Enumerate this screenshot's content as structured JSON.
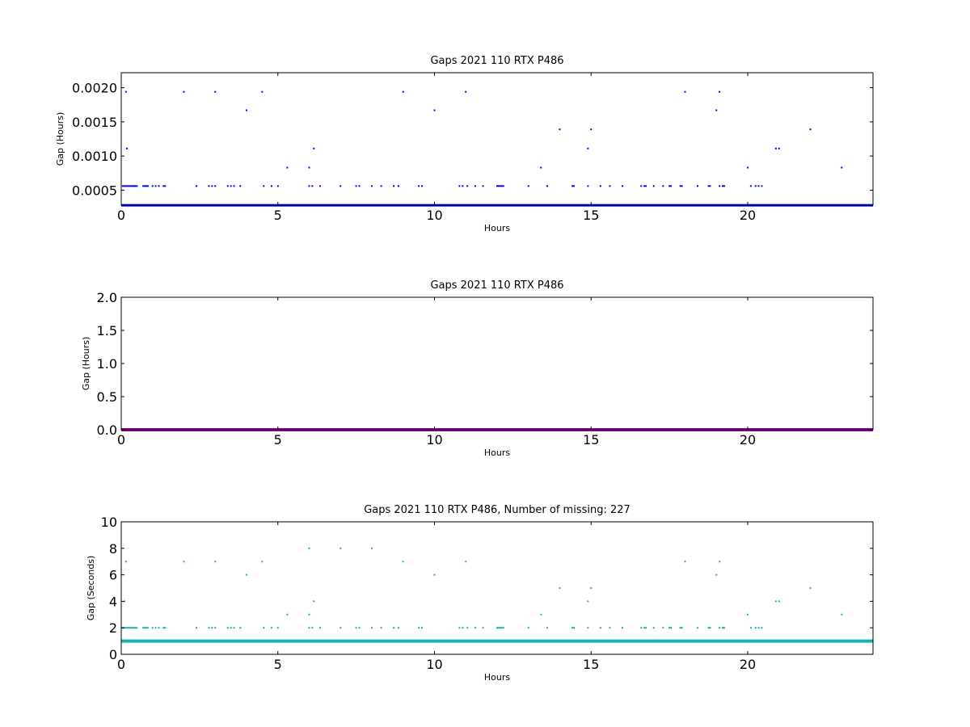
{
  "chart_data": [
    {
      "type": "scatter",
      "title": "Gaps 2021 110 RTX  P486",
      "xlabel": "Hours",
      "ylabel": "Gap (Hours)",
      "xlim": [
        0,
        24
      ],
      "ylim": [
        0.00028,
        0.00222
      ],
      "xticks": [
        0,
        5,
        10,
        15,
        20
      ],
      "yticks": [
        0.0005,
        0.001,
        0.0015,
        0.002
      ],
      "ytick_labels": [
        "0.0005",
        "0.0010",
        "0.0015",
        "0.0020"
      ],
      "color": "#0000ff",
      "baseline": {
        "y": 0.000278,
        "x_from": 0,
        "x_to": 24
      },
      "points": [
        [
          0.15,
          0.00194
        ],
        [
          0.18,
          0.00111
        ],
        [
          2.0,
          0.00194
        ],
        [
          3.0,
          0.00194
        ],
        [
          4.0,
          0.00167
        ],
        [
          4.5,
          0.00194
        ],
        [
          5.3,
          0.00083
        ],
        [
          6.0,
          0.00083
        ],
        [
          6.15,
          0.00111
        ],
        [
          9.0,
          0.00194
        ],
        [
          10.0,
          0.00167
        ],
        [
          11.0,
          0.00194
        ],
        [
          13.4,
          0.00083
        ],
        [
          14.0,
          0.00139
        ],
        [
          14.9,
          0.00111
        ],
        [
          15.0,
          0.00139
        ],
        [
          18.0,
          0.00194
        ],
        [
          19.0,
          0.00167
        ],
        [
          19.1,
          0.00194
        ],
        [
          20.0,
          0.00083
        ],
        [
          20.9,
          0.00111
        ],
        [
          21.0,
          0.00111
        ],
        [
          22.0,
          0.00139
        ],
        [
          23.0,
          0.00083
        ],
        [
          0.05,
          0.00056
        ],
        [
          0.1,
          0.00056
        ],
        [
          0.15,
          0.00056
        ],
        [
          0.2,
          0.00056
        ],
        [
          0.25,
          0.00056
        ],
        [
          0.3,
          0.00056
        ],
        [
          0.35,
          0.00056
        ],
        [
          0.4,
          0.00056
        ],
        [
          0.45,
          0.00056
        ],
        [
          0.5,
          0.00056
        ],
        [
          0.7,
          0.00056
        ],
        [
          0.75,
          0.00056
        ],
        [
          0.8,
          0.00056
        ],
        [
          0.85,
          0.00056
        ],
        [
          1.0,
          0.00056
        ],
        [
          1.1,
          0.00056
        ],
        [
          1.2,
          0.00056
        ],
        [
          1.35,
          0.00056
        ],
        [
          1.4,
          0.00056
        ],
        [
          2.4,
          0.00056
        ],
        [
          2.8,
          0.00056
        ],
        [
          2.9,
          0.00056
        ],
        [
          3.0,
          0.00056
        ],
        [
          3.4,
          0.00056
        ],
        [
          3.5,
          0.00056
        ],
        [
          3.6,
          0.00056
        ],
        [
          3.8,
          0.00056
        ],
        [
          4.55,
          0.00056
        ],
        [
          4.8,
          0.00056
        ],
        [
          5.0,
          0.00056
        ],
        [
          6.0,
          0.00056
        ],
        [
          6.1,
          0.00056
        ],
        [
          6.35,
          0.00056
        ],
        [
          7.0,
          0.00056
        ],
        [
          7.5,
          0.00056
        ],
        [
          7.6,
          0.00056
        ],
        [
          8.0,
          0.00056
        ],
        [
          8.3,
          0.00056
        ],
        [
          8.7,
          0.00056
        ],
        [
          8.85,
          0.00056
        ],
        [
          9.5,
          0.00056
        ],
        [
          9.6,
          0.00056
        ],
        [
          10.8,
          0.00056
        ],
        [
          10.9,
          0.00056
        ],
        [
          11.05,
          0.00056
        ],
        [
          11.3,
          0.00056
        ],
        [
          11.55,
          0.00056
        ],
        [
          12.0,
          0.00056
        ],
        [
          12.05,
          0.00056
        ],
        [
          12.1,
          0.00056
        ],
        [
          12.15,
          0.00056
        ],
        [
          12.2,
          0.00056
        ],
        [
          13.0,
          0.00056
        ],
        [
          13.6,
          0.00056
        ],
        [
          14.4,
          0.00056
        ],
        [
          14.45,
          0.00056
        ],
        [
          14.9,
          0.00056
        ],
        [
          15.3,
          0.00056
        ],
        [
          15.6,
          0.00056
        ],
        [
          16.0,
          0.00056
        ],
        [
          16.6,
          0.00056
        ],
        [
          16.7,
          0.00056
        ],
        [
          16.75,
          0.00056
        ],
        [
          17.0,
          0.00056
        ],
        [
          17.3,
          0.00056
        ],
        [
          17.5,
          0.00056
        ],
        [
          17.55,
          0.00056
        ],
        [
          17.85,
          0.00056
        ],
        [
          17.9,
          0.00056
        ],
        [
          18.4,
          0.00056
        ],
        [
          18.75,
          0.00056
        ],
        [
          18.8,
          0.00056
        ],
        [
          19.1,
          0.00056
        ],
        [
          19.2,
          0.00056
        ],
        [
          19.25,
          0.00056
        ],
        [
          20.1,
          0.00056
        ],
        [
          20.25,
          0.00056
        ],
        [
          20.35,
          0.00056
        ],
        [
          20.45,
          0.00056
        ]
      ]
    },
    {
      "type": "scatter",
      "title": "Gaps 2021 110 RTX  P486",
      "xlabel": "Hours",
      "ylabel": "Gap (Hours)",
      "xlim": [
        0,
        24
      ],
      "ylim": [
        0,
        2.0
      ],
      "xticks": [
        0,
        5,
        10,
        15,
        20
      ],
      "yticks": [
        0.0,
        0.5,
        1.0,
        1.5,
        2.0
      ],
      "ytick_labels": [
        "0.0",
        "0.5",
        "1.0",
        "1.5",
        "2.0"
      ],
      "color": "#990099",
      "baseline": {
        "y": 0.0,
        "x_from": 0,
        "x_to": 24
      },
      "points": []
    },
    {
      "type": "scatter",
      "title": "Gaps 2021 110 RTX  P486, Number of missing: 227",
      "xlabel": "Hours",
      "ylabel": "Gap (Seconds)",
      "xlim": [
        0,
        24
      ],
      "ylim": [
        0,
        10
      ],
      "xticks": [
        0,
        5,
        10,
        15,
        20
      ],
      "yticks": [
        0,
        2,
        4,
        6,
        8,
        10
      ],
      "ytick_labels": [
        "0",
        "2",
        "4",
        "6",
        "8",
        "10"
      ],
      "color": "#17b0b0",
      "baseline": {
        "y": 1,
        "x_from": 0,
        "x_to": 24
      },
      "points": [
        [
          0.15,
          7
        ],
        [
          0.1,
          4
        ],
        [
          2.0,
          7
        ],
        [
          3.0,
          7
        ],
        [
          4.0,
          6
        ],
        [
          4.5,
          7
        ],
        [
          5.3,
          3
        ],
        [
          6.0,
          8
        ],
        [
          6.0,
          3
        ],
        [
          6.15,
          4
        ],
        [
          7.0,
          8
        ],
        [
          8.0,
          8
        ],
        [
          9.0,
          7
        ],
        [
          10.0,
          6
        ],
        [
          11.0,
          7
        ],
        [
          13.4,
          3
        ],
        [
          14.0,
          5
        ],
        [
          14.9,
          4
        ],
        [
          15.0,
          5
        ],
        [
          18.0,
          7
        ],
        [
          19.0,
          6
        ],
        [
          19.1,
          7
        ],
        [
          20.0,
          3
        ],
        [
          20.9,
          4
        ],
        [
          21.0,
          4
        ],
        [
          22.0,
          5
        ],
        [
          23.0,
          3
        ],
        [
          0.05,
          2
        ],
        [
          0.1,
          2
        ],
        [
          0.15,
          2
        ],
        [
          0.2,
          2
        ],
        [
          0.25,
          2
        ],
        [
          0.3,
          2
        ],
        [
          0.35,
          2
        ],
        [
          0.4,
          2
        ],
        [
          0.45,
          2
        ],
        [
          0.5,
          2
        ],
        [
          0.7,
          2
        ],
        [
          0.75,
          2
        ],
        [
          0.8,
          2
        ],
        [
          0.85,
          2
        ],
        [
          1.0,
          2
        ],
        [
          1.1,
          2
        ],
        [
          1.2,
          2
        ],
        [
          1.35,
          2
        ],
        [
          1.4,
          2
        ],
        [
          2.4,
          2
        ],
        [
          2.8,
          2
        ],
        [
          2.9,
          2
        ],
        [
          3.0,
          2
        ],
        [
          3.4,
          2
        ],
        [
          3.5,
          2
        ],
        [
          3.6,
          2
        ],
        [
          3.8,
          2
        ],
        [
          4.55,
          2
        ],
        [
          4.8,
          2
        ],
        [
          5.0,
          2
        ],
        [
          6.0,
          2
        ],
        [
          6.1,
          2
        ],
        [
          6.35,
          2
        ],
        [
          7.0,
          2
        ],
        [
          7.5,
          2
        ],
        [
          7.6,
          2
        ],
        [
          8.0,
          2
        ],
        [
          8.3,
          2
        ],
        [
          8.7,
          2
        ],
        [
          8.85,
          2
        ],
        [
          9.5,
          2
        ],
        [
          9.6,
          2
        ],
        [
          10.8,
          2
        ],
        [
          10.9,
          2
        ],
        [
          11.05,
          2
        ],
        [
          11.3,
          2
        ],
        [
          11.55,
          2
        ],
        [
          12.0,
          2
        ],
        [
          12.05,
          2
        ],
        [
          12.1,
          2
        ],
        [
          12.15,
          2
        ],
        [
          12.2,
          2
        ],
        [
          13.0,
          2
        ],
        [
          13.6,
          2
        ],
        [
          14.4,
          2
        ],
        [
          14.45,
          2
        ],
        [
          14.9,
          2
        ],
        [
          15.3,
          2
        ],
        [
          15.6,
          2
        ],
        [
          16.0,
          2
        ],
        [
          16.6,
          2
        ],
        [
          16.7,
          2
        ],
        [
          16.75,
          2
        ],
        [
          17.0,
          2
        ],
        [
          17.3,
          2
        ],
        [
          17.5,
          2
        ],
        [
          17.55,
          2
        ],
        [
          17.85,
          2
        ],
        [
          17.9,
          2
        ],
        [
          18.4,
          2
        ],
        [
          18.75,
          2
        ],
        [
          18.8,
          2
        ],
        [
          19.1,
          2
        ],
        [
          19.2,
          2
        ],
        [
          19.25,
          2
        ],
        [
          20.1,
          2
        ],
        [
          20.25,
          2
        ],
        [
          20.35,
          2
        ],
        [
          20.45,
          2
        ]
      ]
    }
  ]
}
